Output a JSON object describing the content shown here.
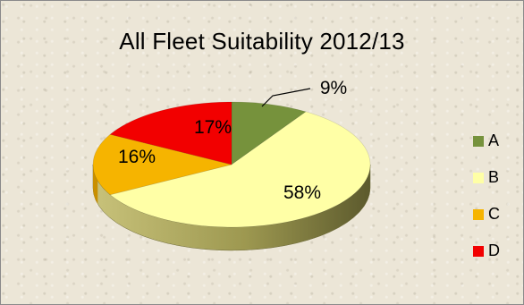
{
  "chart_data": {
    "type": "pie",
    "title": "All Fleet Suitability 2012/13",
    "categories": [
      "A",
      "B",
      "C",
      "D"
    ],
    "values": [
      9,
      58,
      16,
      17
    ],
    "data_labels": [
      "9%",
      "58%",
      "16%",
      "17%"
    ],
    "colors": [
      "#76923C",
      "#FFFFA6",
      "#F6B400",
      "#F20000"
    ],
    "legend_position": "right",
    "style": "3d"
  }
}
